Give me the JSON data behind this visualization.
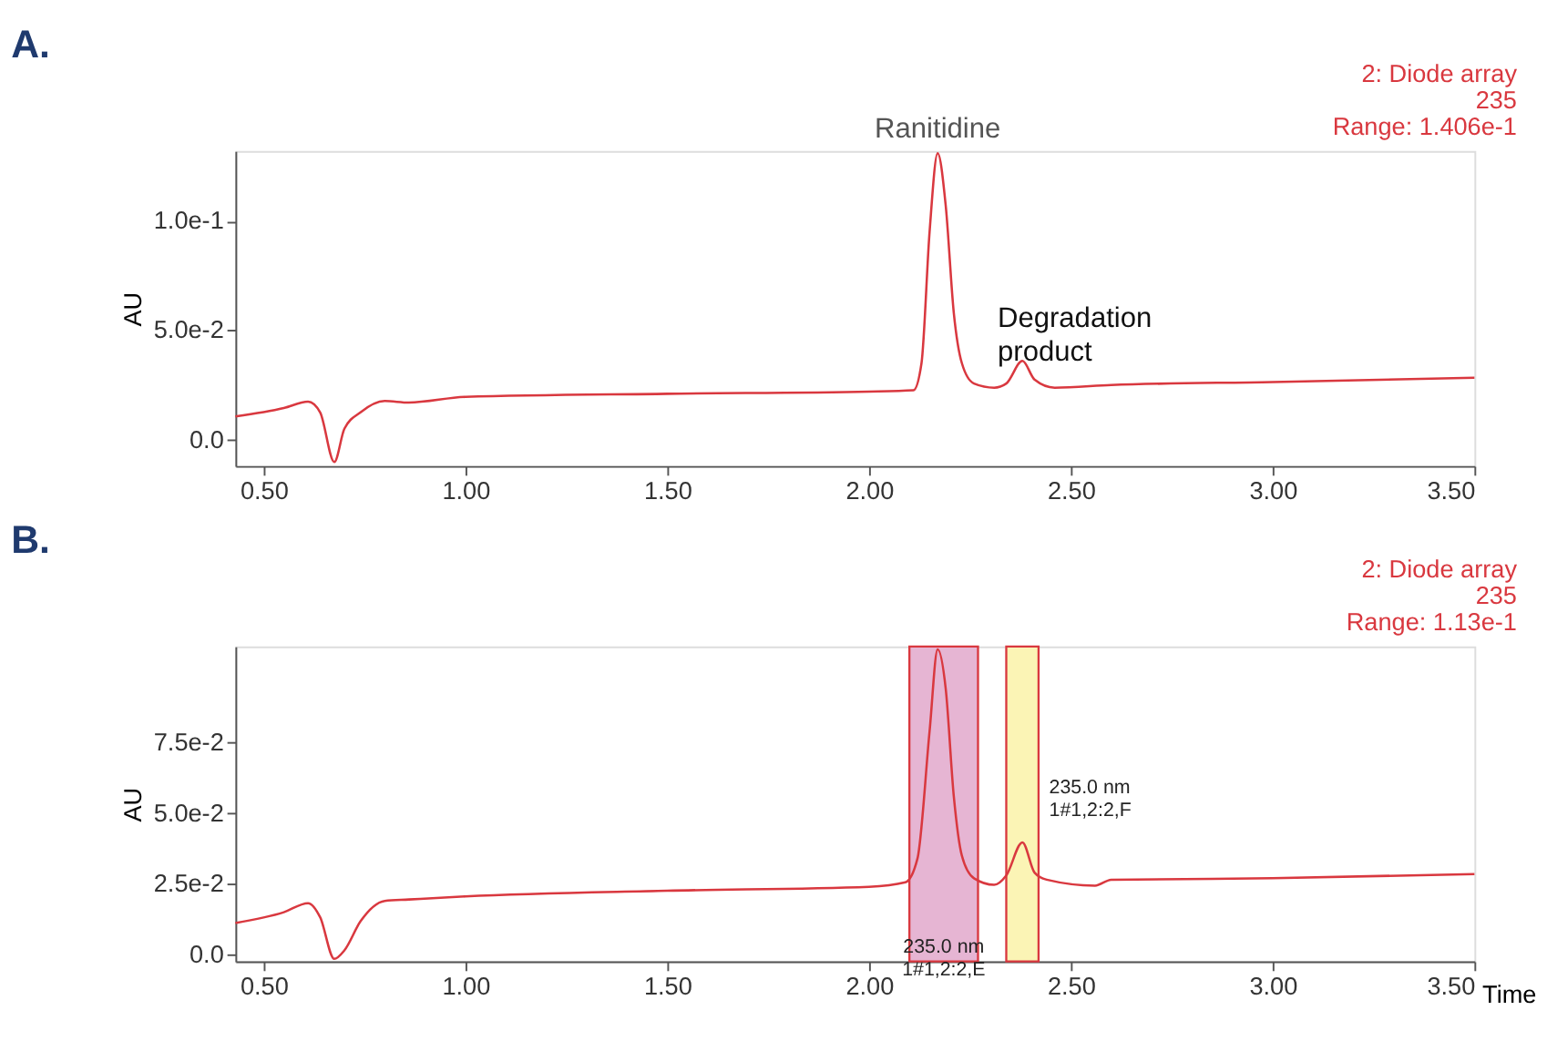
{
  "chart_data": [
    {
      "type": "line",
      "title": "A.",
      "ylabel": "AU",
      "grid": false,
      "x": [
        0.43,
        0.55,
        0.61,
        0.64,
        0.675,
        0.7,
        0.74,
        0.8,
        0.86,
        1.0,
        1.5,
        2.0,
        2.11,
        2.13,
        2.15,
        2.17,
        2.19,
        2.21,
        2.23,
        2.26,
        2.31,
        2.34,
        2.38,
        2.41,
        2.46,
        2.6,
        3.0,
        3.5
      ],
      "series": [
        {
          "color": "#d9383f",
          "values": [
            0.0106,
            0.0145,
            0.0174,
            0.0125,
            -0.0102,
            0.005,
            0.0125,
            0.0177,
            0.017,
            0.0196,
            0.021,
            0.022,
            0.0226,
            0.035,
            0.095,
            0.131,
            0.107,
            0.058,
            0.035,
            0.0257,
            0.0238,
            0.0257,
            0.036,
            0.0275,
            0.0238,
            0.025,
            0.0264,
            0.0283
          ]
        }
      ],
      "xlim": [
        0.43,
        3.5
      ],
      "ylim": [
        -0.012,
        0.132
      ],
      "xticks": [
        {
          "value": 0.5,
          "label": "0.50"
        },
        {
          "value": 1.0,
          "label": "1.00"
        },
        {
          "value": 1.5,
          "label": "1.50"
        },
        {
          "value": 2.0,
          "label": "2.00"
        },
        {
          "value": 2.5,
          "label": "2.50"
        },
        {
          "value": 3.0,
          "label": "3.00"
        },
        {
          "value": 3.5,
          "label": "3.50"
        }
      ],
      "yticks": [
        {
          "value": 0,
          "label": "0.0"
        },
        {
          "value": 0.05,
          "label": "5.0e-2"
        },
        {
          "value": 0.1,
          "label": "1.0e-1"
        }
      ],
      "annotations": [
        "2: Diode array",
        "235",
        "Range: 1.406e-1",
        {
          "text": "Ranitidine",
          "x": 2.17,
          "y": 0.131
        },
        {
          "text": "Degradation product",
          "x": 2.38,
          "y": 0.036
        }
      ]
    },
    {
      "type": "line",
      "title": "B.",
      "ylabel": "AU",
      "xlabel": "Time",
      "grid": false,
      "x": [
        0.43,
        0.55,
        0.61,
        0.64,
        0.675,
        0.7,
        0.74,
        0.8,
        0.86,
        1.0,
        1.5,
        2.0,
        2.09,
        2.12,
        2.15,
        2.17,
        2.19,
        2.21,
        2.23,
        2.26,
        2.31,
        2.34,
        2.38,
        2.41,
        2.44,
        2.56,
        2.6,
        3.0,
        3.5
      ],
      "series": [
        {
          "color": "#d9383f",
          "values": [
            0.0112,
            0.015,
            0.0182,
            0.0132,
            -0.0015,
            0.0015,
            0.0118,
            0.019,
            0.0195,
            0.0206,
            0.0226,
            0.024,
            0.0256,
            0.034,
            0.079,
            0.108,
            0.094,
            0.056,
            0.035,
            0.027,
            0.0247,
            0.028,
            0.0397,
            0.029,
            0.0265,
            0.0244,
            0.0265,
            0.027,
            0.0285
          ]
        }
      ],
      "xlim": [
        0.43,
        3.5
      ],
      "ylim": [
        -0.0024,
        0.109
      ],
      "xticks": [
        {
          "value": 0.5,
          "label": "0.50"
        },
        {
          "value": 1.0,
          "label": "1.00"
        },
        {
          "value": 1.5,
          "label": "1.50"
        },
        {
          "value": 2.0,
          "label": "2.00"
        },
        {
          "value": 2.5,
          "label": "2.50"
        },
        {
          "value": 3.0,
          "label": "3.00"
        },
        {
          "value": 3.5,
          "label": "3.50"
        }
      ],
      "yticks": [
        {
          "value": 0,
          "label": "0.0"
        },
        {
          "value": 0.025,
          "label": "2.5e-2"
        },
        {
          "value": 0.05,
          "label": "5.0e-2"
        },
        {
          "value": 0.075,
          "label": "7.5e-2"
        }
      ],
      "bands": [
        {
          "axis": "x",
          "from": 2.1,
          "to": 2.27,
          "label": "235.0 nm\n1#1,2:2,E",
          "color": "#e6b5d3"
        },
        {
          "axis": "x",
          "from": 2.34,
          "to": 2.42,
          "label": "235.0 nm\n1#1,2:2,F",
          "color": "#fbf4b5"
        }
      ],
      "annotations": [
        "2: Diode array",
        "235",
        "Range: 1.13e-1"
      ]
    }
  ]
}
